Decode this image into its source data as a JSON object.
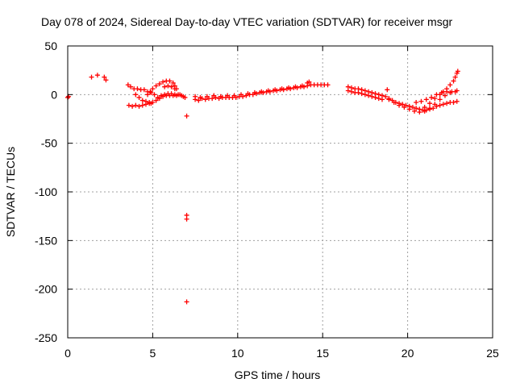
{
  "chart_data": {
    "type": "scatter",
    "title": "Day 078 of 2024, Sidereal Day-to-day VTEC variation (SDTVAR) for receiver msgr",
    "xlabel": "GPS time / hours",
    "ylabel": "SDTVAR / TECUs",
    "xlim": [
      0,
      25
    ],
    "ylim": [
      -250,
      50
    ],
    "grid": true,
    "xticks": [
      0,
      5,
      10,
      15,
      20,
      25
    ],
    "yticks": [
      50,
      0,
      -50,
      -100,
      -150,
      -200,
      -250
    ],
    "marker": "+",
    "color": "#ff0000",
    "series": [
      {
        "name": "SDTVAR",
        "points": [
          [
            0.0,
            -3
          ],
          [
            0.05,
            -2
          ],
          [
            1.4,
            18
          ],
          [
            1.75,
            20
          ],
          [
            2.15,
            18
          ],
          [
            2.25,
            15
          ],
          [
            3.55,
            10
          ],
          [
            3.6,
            -11
          ],
          [
            3.7,
            8
          ],
          [
            3.8,
            -12
          ],
          [
            3.9,
            6
          ],
          [
            4.0,
            -11
          ],
          [
            4.1,
            6
          ],
          [
            4.2,
            -12
          ],
          [
            4.3,
            5
          ],
          [
            4.4,
            -11
          ],
          [
            4.5,
            5
          ],
          [
            4.6,
            -10
          ],
          [
            4.7,
            3
          ],
          [
            4.8,
            -9
          ],
          [
            4.9,
            2
          ],
          [
            5.0,
            -8
          ],
          [
            5.1,
            0
          ],
          [
            5.2,
            -6
          ],
          [
            5.3,
            -3
          ],
          [
            5.4,
            -4
          ],
          [
            5.5,
            -1
          ],
          [
            5.6,
            -2
          ],
          [
            5.7,
            0
          ],
          [
            5.8,
            -1
          ],
          [
            5.9,
            1
          ],
          [
            6.0,
            -1
          ],
          [
            6.1,
            1
          ],
          [
            6.2,
            -1
          ],
          [
            6.3,
            0
          ],
          [
            6.4,
            -1
          ],
          [
            6.5,
            0
          ],
          [
            6.6,
            0
          ],
          [
            6.7,
            -1
          ],
          [
            6.8,
            -2
          ],
          [
            6.9,
            -3
          ],
          [
            4.0,
            0
          ],
          [
            4.2,
            -3
          ],
          [
            4.4,
            -6
          ],
          [
            4.6,
            -7
          ],
          [
            4.8,
            -8
          ],
          [
            4.9,
            -9
          ],
          [
            4.7,
            0
          ],
          [
            4.85,
            3
          ],
          [
            5.0,
            6
          ],
          [
            5.2,
            9
          ],
          [
            5.4,
            11
          ],
          [
            5.6,
            13
          ],
          [
            5.8,
            14
          ],
          [
            6.0,
            14
          ],
          [
            6.2,
            12
          ],
          [
            6.3,
            9
          ],
          [
            6.4,
            6
          ],
          [
            5.7,
            8
          ],
          [
            5.9,
            9
          ],
          [
            6.1,
            8
          ],
          [
            6.3,
            6
          ],
          [
            7.0,
            -22
          ],
          [
            7.0,
            -124
          ],
          [
            7.0,
            -128
          ],
          [
            7.0,
            -213
          ],
          [
            7.5,
            -5
          ],
          [
            7.7,
            -6
          ],
          [
            7.9,
            -4
          ],
          [
            8.1,
            -5
          ],
          [
            8.3,
            -4
          ],
          [
            8.5,
            -4
          ],
          [
            8.7,
            -3
          ],
          [
            8.9,
            -4
          ],
          [
            9.1,
            -3
          ],
          [
            9.3,
            -3
          ],
          [
            9.5,
            -3
          ],
          [
            9.7,
            -3
          ],
          [
            9.9,
            -3
          ],
          [
            10.1,
            -2
          ],
          [
            10.3,
            -2
          ],
          [
            10.5,
            -1
          ],
          [
            10.7,
            0
          ],
          [
            10.9,
            0
          ],
          [
            11.1,
            1
          ],
          [
            11.3,
            2
          ],
          [
            11.5,
            2
          ],
          [
            11.7,
            3
          ],
          [
            11.9,
            3
          ],
          [
            12.1,
            4
          ],
          [
            12.3,
            4
          ],
          [
            12.5,
            5
          ],
          [
            12.7,
            5
          ],
          [
            12.9,
            6
          ],
          [
            13.1,
            6
          ],
          [
            13.3,
            7
          ],
          [
            13.5,
            7
          ],
          [
            13.7,
            8
          ],
          [
            13.9,
            8
          ],
          [
            14.1,
            9
          ],
          [
            14.3,
            10
          ],
          [
            14.5,
            10
          ],
          [
            14.7,
            10
          ],
          [
            14.9,
            10
          ],
          [
            15.1,
            10
          ],
          [
            15.3,
            10
          ],
          [
            7.5,
            -2
          ],
          [
            7.8,
            -3
          ],
          [
            8.2,
            -2
          ],
          [
            8.6,
            -1
          ],
          [
            9.0,
            -2
          ],
          [
            9.4,
            -1
          ],
          [
            9.8,
            -1
          ],
          [
            10.2,
            0
          ],
          [
            10.6,
            1
          ],
          [
            11.0,
            2
          ],
          [
            11.4,
            3
          ],
          [
            11.8,
            4
          ],
          [
            12.2,
            5
          ],
          [
            12.6,
            6
          ],
          [
            13.0,
            7
          ],
          [
            13.4,
            8
          ],
          [
            13.8,
            9
          ],
          [
            14.1,
            12
          ],
          [
            14.2,
            13
          ],
          [
            16.5,
            8
          ],
          [
            16.7,
            7
          ],
          [
            16.9,
            6
          ],
          [
            17.1,
            6
          ],
          [
            17.3,
            5
          ],
          [
            17.5,
            4
          ],
          [
            17.7,
            3
          ],
          [
            17.9,
            2
          ],
          [
            18.1,
            1
          ],
          [
            18.3,
            0
          ],
          [
            18.5,
            -1
          ],
          [
            18.7,
            -2
          ],
          [
            16.5,
            4
          ],
          [
            16.7,
            3
          ],
          [
            16.9,
            2
          ],
          [
            17.1,
            2
          ],
          [
            17.3,
            1
          ],
          [
            17.5,
            0
          ],
          [
            17.7,
            -1
          ],
          [
            17.9,
            -2
          ],
          [
            18.1,
            -3
          ],
          [
            18.3,
            -4
          ],
          [
            18.5,
            -5
          ],
          [
            18.8,
            5
          ],
          [
            18.9,
            -4
          ],
          [
            19.1,
            -6
          ],
          [
            19.3,
            -8
          ],
          [
            19.5,
            -9
          ],
          [
            19.7,
            -10
          ],
          [
            19.9,
            -11
          ],
          [
            20.1,
            -12
          ],
          [
            20.3,
            -13
          ],
          [
            20.5,
            -14
          ],
          [
            20.7,
            -15
          ],
          [
            20.9,
            -16
          ],
          [
            21.1,
            -16
          ],
          [
            21.3,
            -15
          ],
          [
            21.5,
            -14
          ],
          [
            21.7,
            -12
          ],
          [
            21.9,
            -11
          ],
          [
            22.1,
            -10
          ],
          [
            22.3,
            -9
          ],
          [
            22.5,
            -8
          ],
          [
            22.7,
            -8
          ],
          [
            22.9,
            -7
          ],
          [
            18.9,
            -5
          ],
          [
            19.2,
            -8
          ],
          [
            19.5,
            -11
          ],
          [
            19.8,
            -13
          ],
          [
            20.1,
            -15
          ],
          [
            20.4,
            -17
          ],
          [
            20.7,
            -18
          ],
          [
            21.0,
            -17
          ],
          [
            21.3,
            -14
          ],
          [
            21.6,
            -10
          ],
          [
            21.9,
            -5
          ],
          [
            22.2,
            -1
          ],
          [
            22.5,
            2
          ],
          [
            22.8,
            3
          ],
          [
            20.5,
            -8
          ],
          [
            20.8,
            -7
          ],
          [
            21.1,
            -5
          ],
          [
            21.4,
            -3
          ],
          [
            21.7,
            0
          ],
          [
            22.0,
            2
          ],
          [
            22.3,
            3
          ],
          [
            22.6,
            3
          ],
          [
            22.9,
            4
          ],
          [
            21.0,
            -13
          ],
          [
            21.3,
            -9
          ],
          [
            21.6,
            -4
          ],
          [
            21.9,
            0
          ],
          [
            22.1,
            3
          ],
          [
            22.3,
            6
          ],
          [
            22.5,
            10
          ],
          [
            22.7,
            14
          ],
          [
            22.8,
            18
          ],
          [
            22.9,
            22
          ],
          [
            22.95,
            24
          ]
        ]
      }
    ]
  }
}
